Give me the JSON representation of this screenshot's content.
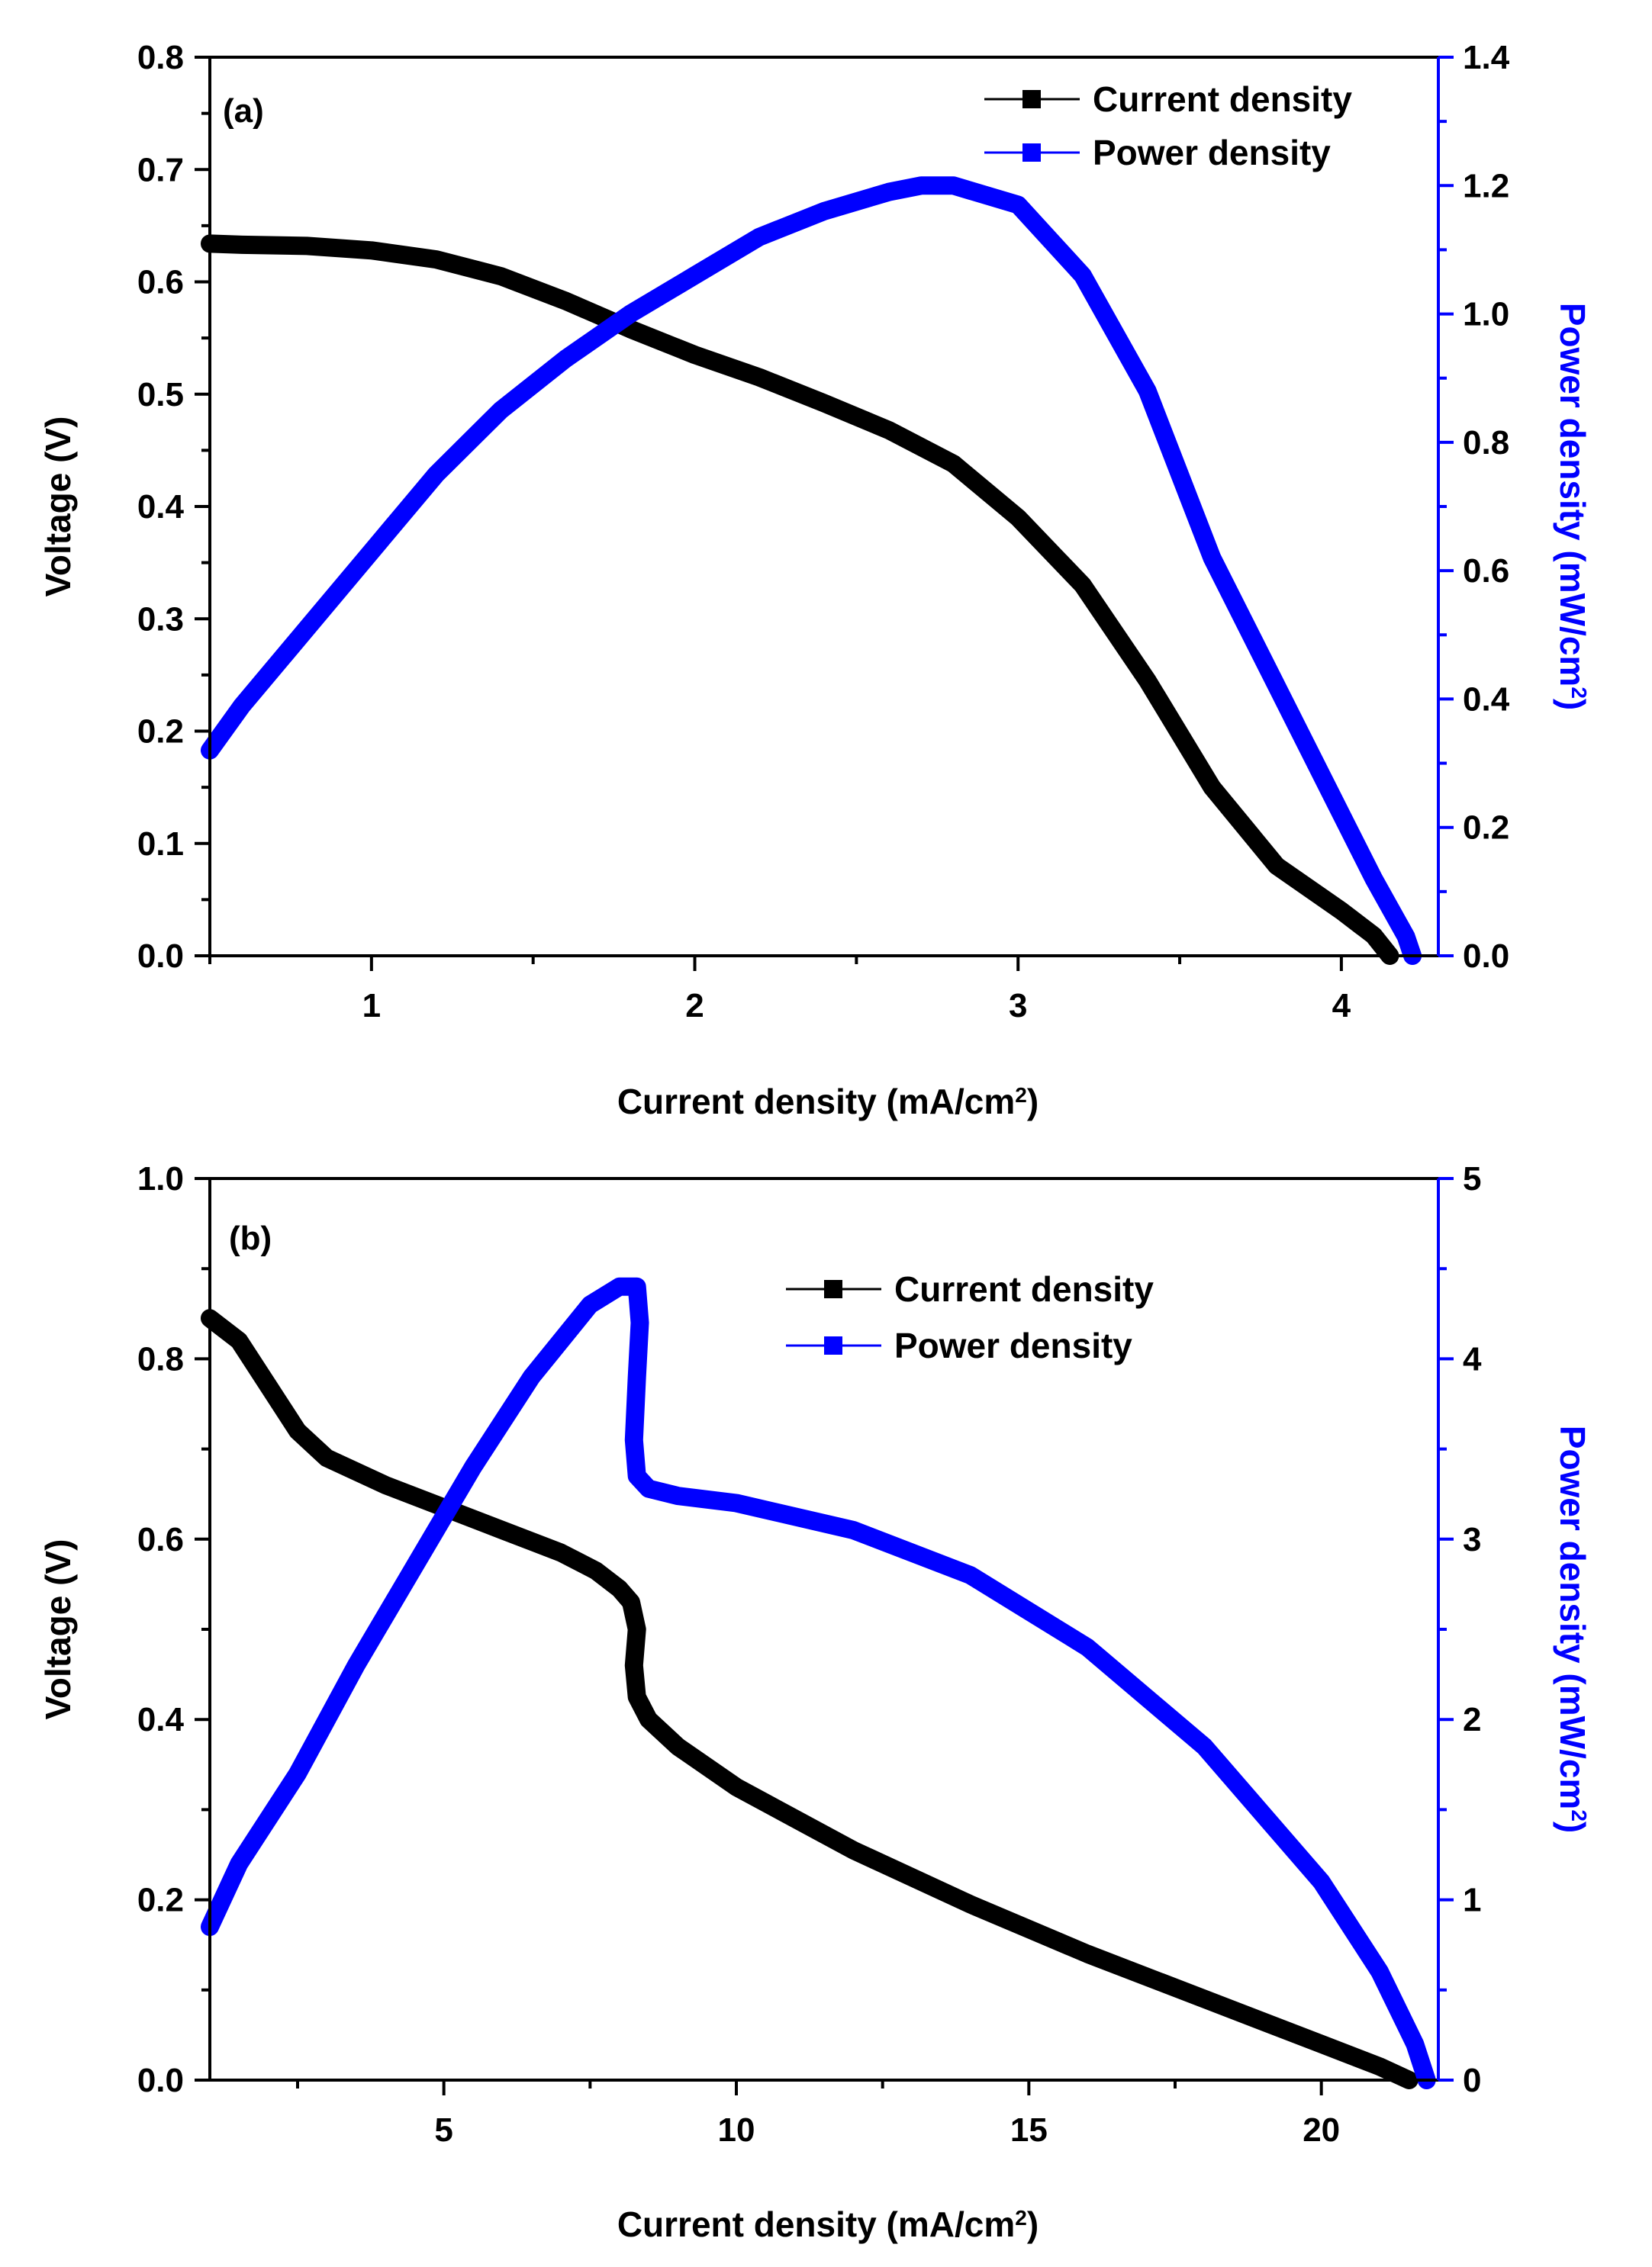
{
  "chart_data": [
    {
      "type": "line",
      "panel_label": "(a)",
      "xlabel": "Current density (mA/cm",
      "xlabel_sup": "2",
      "xlabel_tail": ")",
      "ylabel": "Voltage (V)",
      "ylabel_right": "Power density (mW/cm",
      "ylabel_right_sup": "2",
      "ylabel_right_tail": ")",
      "xlim": [
        0.5,
        4.3
      ],
      "ylim": [
        0.0,
        0.8
      ],
      "ylim_right": [
        0.0,
        1.4
      ],
      "x_ticks": [
        "1",
        "2",
        "3",
        "4"
      ],
      "y_ticks": [
        "0.0",
        "0.1",
        "0.2",
        "0.3",
        "0.4",
        "0.5",
        "0.6",
        "0.7",
        "0.8"
      ],
      "y_ticks_right": [
        "0.0",
        "0.2",
        "0.4",
        "0.6",
        "0.8",
        "1.0",
        "1.2",
        "1.4"
      ],
      "legend_position": "top-right",
      "legend": [
        "Current density",
        "Power density"
      ],
      "series": [
        {
          "name": "Current density",
          "axis": "left",
          "color": "#000000",
          "x": [
            0.5,
            0.6,
            0.8,
            1.0,
            1.2,
            1.4,
            1.6,
            1.8,
            2.0,
            2.2,
            2.4,
            2.6,
            2.8,
            3.0,
            3.2,
            3.4,
            3.6,
            3.8,
            4.0,
            4.1,
            4.15
          ],
          "y": [
            0.634,
            0.633,
            0.632,
            0.628,
            0.62,
            0.605,
            0.583,
            0.558,
            0.535,
            0.515,
            0.492,
            0.468,
            0.438,
            0.39,
            0.33,
            0.245,
            0.15,
            0.08,
            0.04,
            0.018,
            0.0
          ]
        },
        {
          "name": "Power density",
          "axis": "right",
          "color": "#0000ff",
          "x": [
            0.5,
            0.6,
            0.8,
            1.0,
            1.2,
            1.4,
            1.6,
            1.8,
            2.0,
            2.2,
            2.4,
            2.6,
            2.7,
            2.8,
            3.0,
            3.2,
            3.4,
            3.6,
            3.8,
            4.0,
            4.1,
            4.2,
            4.22
          ],
          "y": [
            0.32,
            0.39,
            0.51,
            0.63,
            0.75,
            0.85,
            0.93,
            1.0,
            1.06,
            1.12,
            1.16,
            1.19,
            1.2,
            1.2,
            1.17,
            1.06,
            0.88,
            0.62,
            0.42,
            0.22,
            0.12,
            0.03,
            0.0
          ]
        }
      ]
    },
    {
      "type": "line",
      "panel_label": "(b)",
      "xlabel": "Current density (mA/cm",
      "xlabel_sup": "2",
      "xlabel_tail": ")",
      "ylabel": "Voltage (V)",
      "ylabel_right": "Power density (mW/cm",
      "ylabel_right_sup": "2",
      "ylabel_right_tail": ")",
      "xlim": [
        1.0,
        22.0
      ],
      "ylim": [
        0.0,
        1.0
      ],
      "ylim_right": [
        0,
        5
      ],
      "x_ticks": [
        "5",
        "10",
        "15",
        "20"
      ],
      "y_ticks": [
        "0.0",
        "0.2",
        "0.4",
        "0.6",
        "0.8",
        "1.0"
      ],
      "y_ticks_right": [
        "0",
        "1",
        "2",
        "3",
        "4",
        "5"
      ],
      "legend_position": "top-center",
      "legend": [
        "Current density",
        "Power density"
      ],
      "series": [
        {
          "name": "Current density",
          "axis": "left",
          "color": "#000000",
          "x": [
            1.0,
            1.5,
            2.0,
            2.5,
            3.0,
            4.0,
            5.0,
            6.0,
            7.0,
            7.6,
            8.0,
            8.2,
            8.3,
            8.25,
            8.3,
            8.5,
            9.0,
            10.0,
            12.0,
            14.0,
            16.0,
            18.0,
            20.0,
            21.0,
            21.5
          ],
          "y": [
            0.845,
            0.82,
            0.77,
            0.72,
            0.69,
            0.66,
            0.635,
            0.61,
            0.585,
            0.565,
            0.545,
            0.53,
            0.5,
            0.46,
            0.425,
            0.4,
            0.37,
            0.325,
            0.255,
            0.195,
            0.14,
            0.09,
            0.04,
            0.015,
            0.0
          ]
        },
        {
          "name": "Power density",
          "axis": "right",
          "color": "#0000ff",
          "x": [
            1.0,
            1.5,
            2.5,
            3.5,
            4.5,
            5.5,
            6.5,
            7.5,
            8.0,
            8.3,
            8.35,
            8.3,
            8.25,
            8.3,
            8.5,
            9.0,
            10.0,
            12.0,
            14.0,
            16.0,
            18.0,
            20.0,
            21.0,
            21.6,
            21.8
          ],
          "y": [
            0.85,
            1.2,
            1.7,
            2.3,
            2.85,
            3.4,
            3.9,
            4.3,
            4.4,
            4.4,
            4.2,
            3.9,
            3.55,
            3.35,
            3.28,
            3.24,
            3.2,
            3.05,
            2.8,
            2.4,
            1.85,
            1.1,
            0.6,
            0.2,
            0.0
          ]
        }
      ]
    }
  ]
}
